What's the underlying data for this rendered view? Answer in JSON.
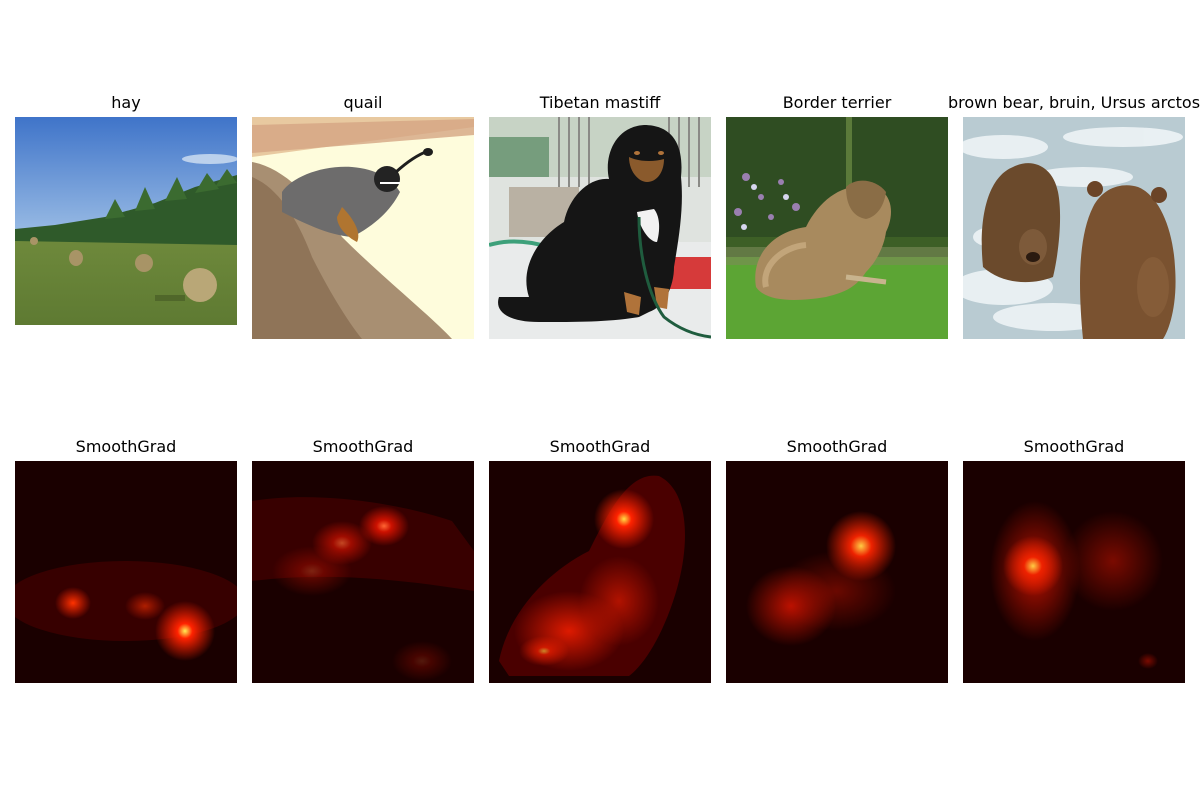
{
  "figure": {
    "top_row": [
      {
        "title": "hay",
        "image": "photo of a grassy field with round hay bales under a blue sky",
        "icon": "hay-photo"
      },
      {
        "title": "quail",
        "image": "photo of a quail perched on a rock",
        "icon": "quail-photo"
      },
      {
        "title": "Tibetan mastiff",
        "image": "photo of a black and tan Tibetan mastiff sitting on a leash",
        "icon": "mastiff-photo"
      },
      {
        "title": "Border terrier",
        "image": "photo of a Border terrier lying on grass",
        "icon": "terrier-photo"
      },
      {
        "title": "brown bear, bruin, Ursus arctos",
        "image": "photo of two brown bears in rushing water",
        "icon": "bear-photo"
      }
    ],
    "bottom_row": [
      {
        "title": "SmoothGrad",
        "icon": "saliency-heatmap"
      },
      {
        "title": "SmoothGrad",
        "icon": "saliency-heatmap"
      },
      {
        "title": "SmoothGrad",
        "icon": "saliency-heatmap"
      },
      {
        "title": "SmoothGrad",
        "icon": "saliency-heatmap"
      },
      {
        "title": "SmoothGrad",
        "icon": "saliency-heatmap"
      }
    ],
    "colors": {
      "heatmap_background": "#1a0000",
      "heatmap_hot": "#ff2200",
      "heatmap_peak": "#ffee55"
    }
  }
}
